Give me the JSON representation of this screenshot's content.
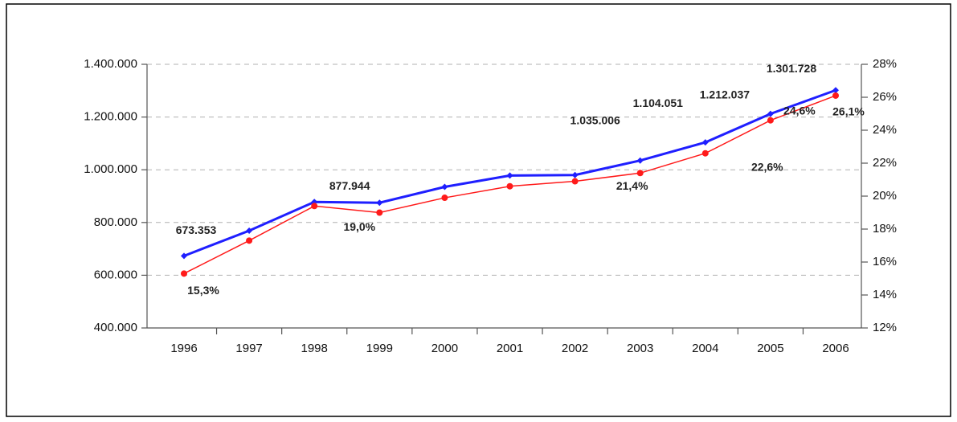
{
  "chart_data": {
    "type": "line",
    "categories": [
      "1996",
      "1997",
      "1998",
      "1999",
      "2000",
      "2001",
      "2002",
      "2003",
      "2004",
      "2005",
      "2006"
    ],
    "series": [
      {
        "color": "#1f1fff",
        "values": [
          673353,
          769000,
          877944,
          875000,
          935000,
          978000,
          980000,
          1035006,
          1104051,
          1212037,
          1301728
        ],
        "value_labels": [
          "673.353",
          null,
          "877.944",
          null,
          null,
          null,
          null,
          "1.035.006",
          "1.104.051",
          "1.212.037",
          "1.301.728"
        ]
      },
      {
        "color": "#ff1a1a",
        "axis": "y2",
        "values": [
          15.3,
          17.3,
          19.4,
          19.0,
          19.9,
          20.6,
          20.9,
          21.4,
          22.6,
          24.6,
          26.1
        ],
        "value_labels": [
          "15,3%",
          null,
          null,
          "19,0%",
          null,
          null,
          null,
          "21,4%",
          "22,6%",
          "24,6%",
          "26,1%"
        ]
      }
    ],
    "ylim": [
      400000,
      1400000
    ],
    "yticks": [
      {
        "value": 400000,
        "label": "400.000"
      },
      {
        "value": 600000,
        "label": "600.000"
      },
      {
        "value": 800000,
        "label": "800.000"
      },
      {
        "value": 1000000,
        "label": "1.000.000"
      },
      {
        "value": 1200000,
        "label": "1.200.000"
      },
      {
        "value": 1400000,
        "label": "1.400.000"
      }
    ],
    "y2lim": [
      12,
      28
    ],
    "y2ticks": [
      {
        "value": 12,
        "label": "12%"
      },
      {
        "value": 14,
        "label": "14%"
      },
      {
        "value": 16,
        "label": "16%"
      },
      {
        "value": 18,
        "label": "18%"
      },
      {
        "value": 20,
        "label": "20%"
      },
      {
        "value": 22,
        "label": "22%"
      },
      {
        "value": 24,
        "label": "24%"
      },
      {
        "value": 26,
        "label": "26%"
      },
      {
        "value": 28,
        "label": "28%"
      }
    ],
    "grid": true
  }
}
